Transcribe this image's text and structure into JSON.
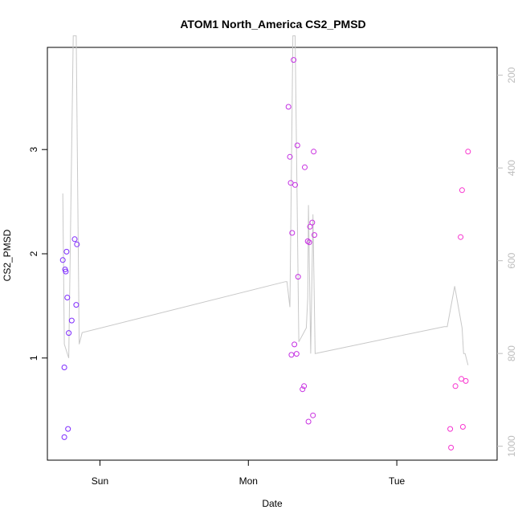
{
  "chart_data": {
    "type": "scatter",
    "title": "ATOM1 North_America CS2_PMSD",
    "xlabel": "Date",
    "ylabel": "CS2_PMSD",
    "x_ticks": [
      {
        "label": "Sun",
        "t": 0.3
      },
      {
        "label": "Mon",
        "t": 1.3
      },
      {
        "label": "Tue",
        "t": 2.3
      }
    ],
    "xlim": [
      0,
      2.9
    ],
    "ylim": [
      0.02,
      3.98
    ],
    "y_ticks": [
      1,
      2,
      3
    ],
    "y2lim": [
      1030,
      140
    ],
    "y2_ticks": [
      200,
      400,
      600,
      800,
      1000
    ],
    "colors": {
      "points_start": "#7a2bff",
      "points_end": "#ff33cc",
      "line": "#c8c8c8",
      "axis": "#000000",
      "right_axis": "#bdbdbd"
    },
    "series": [
      {
        "kind": "points",
        "points": [
          [
            0.05,
            1.94
          ],
          [
            0.06,
            0.91
          ],
          [
            0.06,
            0.24
          ],
          [
            0.065,
            1.85
          ],
          [
            0.07,
            1.83
          ],
          [
            0.075,
            2.02
          ],
          [
            0.08,
            1.58
          ],
          [
            0.085,
            0.32
          ],
          [
            0.09,
            1.24
          ],
          [
            0.11,
            1.36
          ],
          [
            0.13,
            2.14
          ],
          [
            0.14,
            1.51
          ],
          [
            0.145,
            2.09
          ],
          [
            1.57,
            3.41
          ],
          [
            1.58,
            2.93
          ],
          [
            1.585,
            2.68
          ],
          [
            1.59,
            1.03
          ],
          [
            1.595,
            2.2
          ],
          [
            1.605,
            3.86
          ],
          [
            1.61,
            1.13
          ],
          [
            1.615,
            2.66
          ],
          [
            1.625,
            1.04
          ],
          [
            1.63,
            3.04
          ],
          [
            1.635,
            1.78
          ],
          [
            1.665,
            0.7
          ],
          [
            1.675,
            0.73
          ],
          [
            1.68,
            2.83
          ],
          [
            1.7,
            2.12
          ],
          [
            1.705,
            0.39
          ],
          [
            1.71,
            2.11
          ],
          [
            1.715,
            2.26
          ],
          [
            1.73,
            2.3
          ],
          [
            1.735,
            0.45
          ],
          [
            1.74,
            2.98
          ],
          [
            1.745,
            2.18
          ],
          [
            2.66,
            0.32
          ],
          [
            2.665,
            0.14
          ],
          [
            2.695,
            0.73
          ],
          [
            2.73,
            2.16
          ],
          [
            2.735,
            0.8
          ],
          [
            2.74,
            2.61
          ],
          [
            2.745,
            0.34
          ],
          [
            2.765,
            0.78
          ],
          [
            2.78,
            2.98
          ]
        ]
      },
      {
        "kind": "line",
        "axis": "right",
        "points": [
          [
            0.05,
            455
          ],
          [
            0.06,
            780
          ],
          [
            0.09,
            810
          ],
          [
            0.12,
            115
          ],
          [
            0.14,
            115
          ],
          [
            0.16,
            780
          ],
          [
            0.18,
            755
          ],
          [
            1.55,
            645
          ],
          [
            1.56,
            645
          ],
          [
            1.58,
            700
          ],
          [
            1.6,
            115
          ],
          [
            1.615,
            115
          ],
          [
            1.64,
            775
          ],
          [
            1.69,
            745
          ],
          [
            1.7,
            680
          ],
          [
            1.705,
            480
          ],
          [
            1.72,
            800
          ],
          [
            1.735,
            500
          ],
          [
            1.75,
            800
          ],
          [
            2.62,
            742
          ],
          [
            2.64,
            742
          ],
          [
            2.69,
            655
          ],
          [
            2.74,
            745
          ],
          [
            2.75,
            800
          ],
          [
            2.76,
            800
          ],
          [
            2.78,
            825
          ]
        ]
      }
    ]
  }
}
